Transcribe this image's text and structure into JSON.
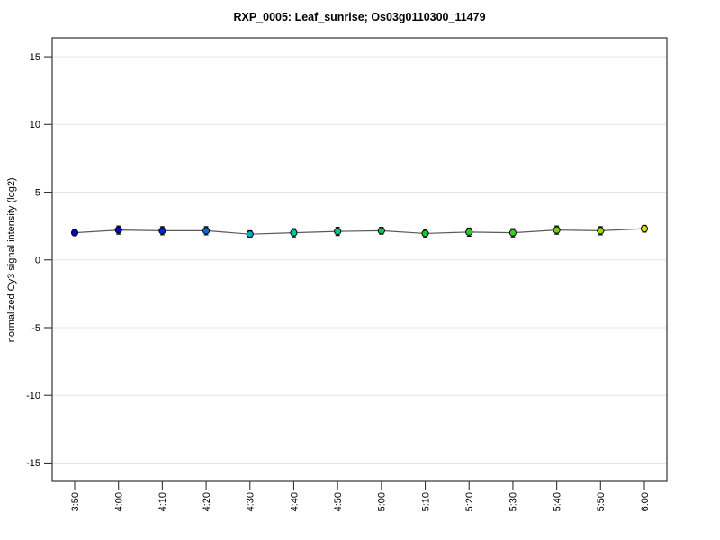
{
  "page": {
    "background": "#ffffff"
  },
  "chart_data": {
    "type": "line",
    "title": "RXP_0005: Leaf_sunrise; Os03g0110300_11479",
    "xlabel": "",
    "ylabel": "normalized Cy3 signal intensity (log2)",
    "categories": [
      "3:50",
      "4:00",
      "4:10",
      "4:20",
      "4:30",
      "4:40",
      "4:50",
      "5:00",
      "5:10",
      "5:20",
      "5:30",
      "5:40",
      "5:50",
      "6:00"
    ],
    "values": [
      2.0,
      2.2,
      2.15,
      2.15,
      1.9,
      2.0,
      2.1,
      2.15,
      1.95,
      2.05,
      2.0,
      2.2,
      2.15,
      2.3
    ],
    "errors": [
      0.2,
      0.3,
      0.3,
      0.3,
      0.25,
      0.3,
      0.3,
      0.25,
      0.3,
      0.3,
      0.3,
      0.3,
      0.3,
      0.25
    ],
    "point_colors": [
      "#0000CC",
      "#0008CE",
      "#0026D2",
      "#0A6ADA",
      "#00AEC8",
      "#00C4A2",
      "#00CA7E",
      "#00C65E",
      "#0CCA3A",
      "#20CC2C",
      "#36CE1C",
      "#72D202",
      "#9ED800",
      "#D8D800"
    ],
    "yticks": [
      15,
      10,
      5,
      0,
      -5,
      -10,
      -15
    ],
    "ylim": [
      -16.3,
      16.4
    ],
    "grid": true,
    "legend_position": "none",
    "line_color": "#5a5a5a",
    "marker_outline": "#000000",
    "error_bar_color": "#000000",
    "grid_color": "#e4e4e4",
    "axis_color": "#333333"
  }
}
